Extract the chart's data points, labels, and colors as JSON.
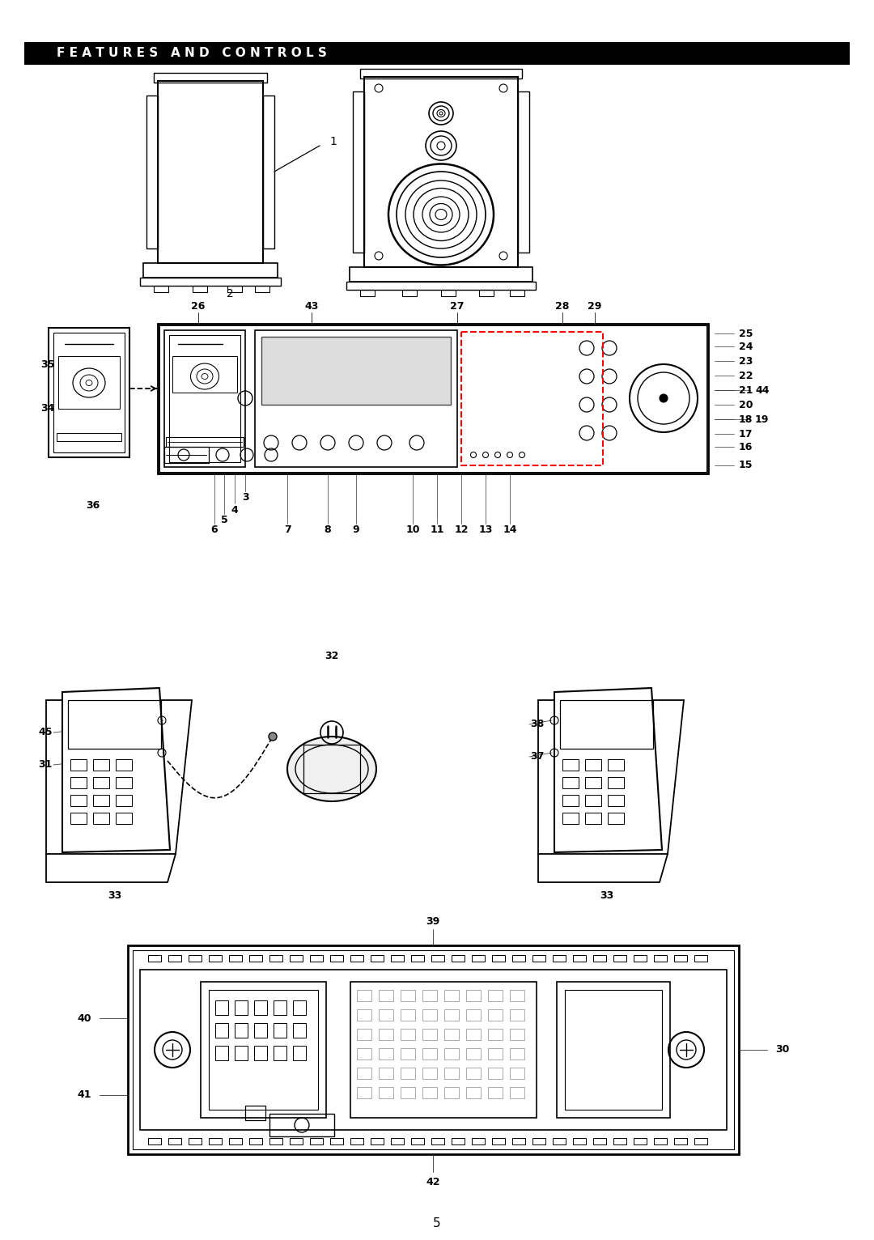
{
  "title": "F E A T U R E S   A N D   C O N T R O L S",
  "page_number": "5",
  "bg_color": "#ffffff",
  "title_bg": "#000000",
  "title_color": "#ffffff",
  "fig_width": 10.8,
  "fig_height": 15.32
}
